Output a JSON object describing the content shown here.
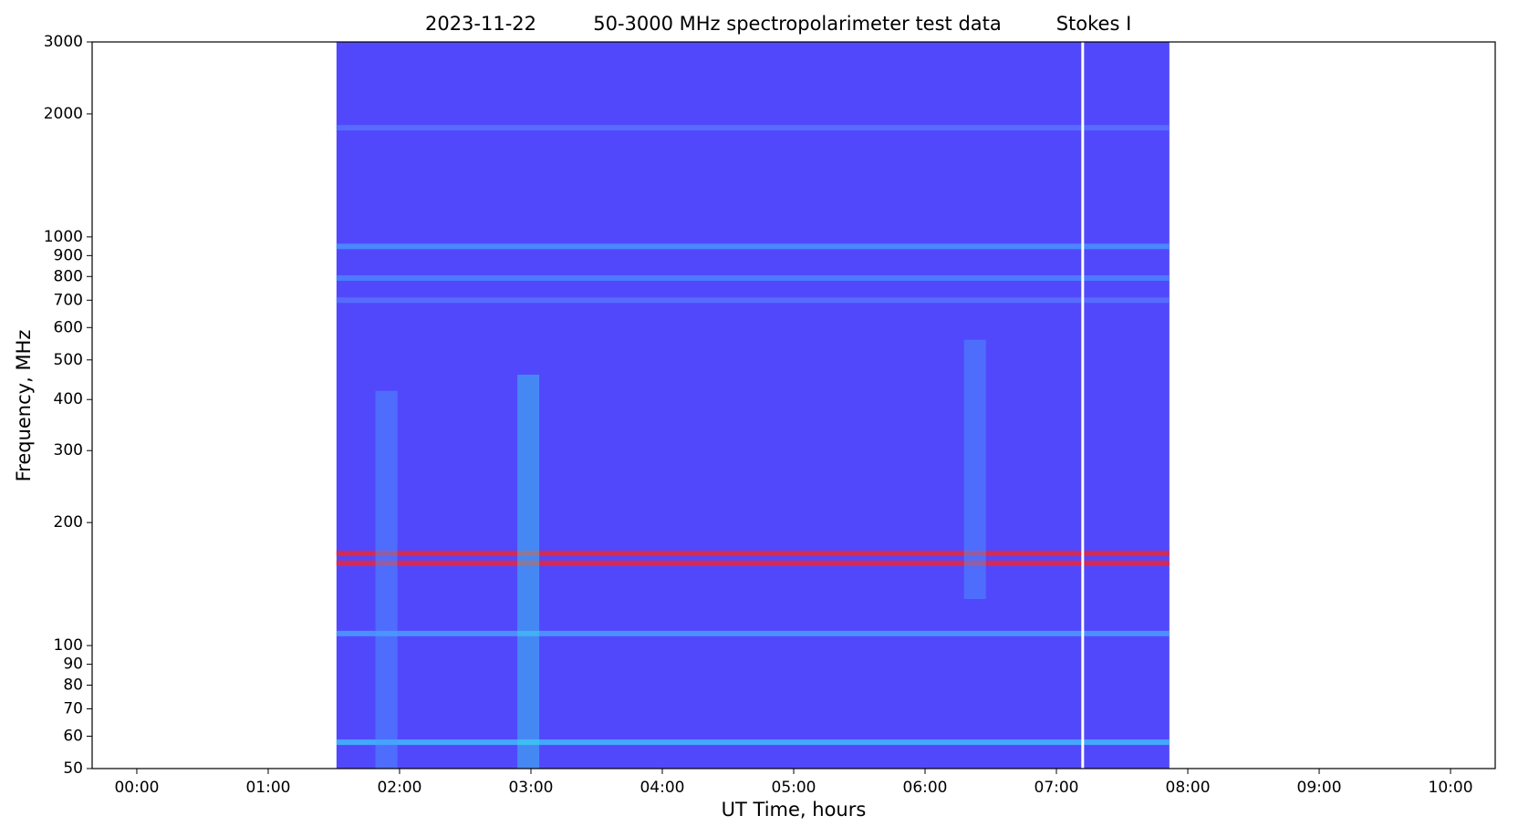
{
  "chart_data": {
    "type": "spectrogram",
    "title": "2023-11-22",
    "subtitle": "50-3000 MHz spectropolarimeter test data",
    "annotation": "Stokes I",
    "x_label": "UT Time, hours",
    "y_label": "Frequency, MHz",
    "xlim": [
      -0.34,
      10.34
    ],
    "xticks": [
      {
        "value": 0,
        "label": "00:00"
      },
      {
        "value": 1,
        "label": "01:00"
      },
      {
        "value": 2,
        "label": "02:00"
      },
      {
        "value": 3,
        "label": "03:00"
      },
      {
        "value": 4,
        "label": "04:00"
      },
      {
        "value": 5,
        "label": "05:00"
      },
      {
        "value": 6,
        "label": "06:00"
      },
      {
        "value": 7,
        "label": "07:00"
      },
      {
        "value": 8,
        "label": "08:00"
      },
      {
        "value": 9,
        "label": "09:00"
      },
      {
        "value": 10,
        "label": "10:00"
      }
    ],
    "ylim": [
      50,
      3000
    ],
    "yscale": "log",
    "yticks": [
      50,
      60,
      70,
      80,
      90,
      100,
      200,
      300,
      400,
      500,
      600,
      700,
      800,
      900,
      1000,
      2000,
      3000
    ],
    "background_color": "#5248fb",
    "observation": {
      "start": 1.52,
      "end": 7.86,
      "gap": 7.2
    },
    "bands": [
      {
        "freq": 168,
        "color": "#ff2020"
      },
      {
        "freq": 159,
        "color": "#ff2020"
      },
      {
        "freq": 107,
        "color": "#4aa8ff"
      },
      {
        "freq": 948,
        "color": "#4a9cff"
      },
      {
        "freq": 793,
        "color": "#4a8cff"
      },
      {
        "freq": 58,
        "color": "#40c8ff"
      },
      {
        "freq": 1850,
        "color": "#5a78ff"
      },
      {
        "freq": 700,
        "color": "#5a78ff"
      }
    ],
    "bursts": [
      {
        "time": 2.98,
        "fmin": 50,
        "fmax": 460,
        "color": "#38d8e8"
      },
      {
        "time": 1.9,
        "fmin": 50,
        "fmax": 420,
        "color": "#4a9cff"
      },
      {
        "time": 6.38,
        "fmin": 130,
        "fmax": 560,
        "color": "#4a9cff"
      }
    ]
  }
}
